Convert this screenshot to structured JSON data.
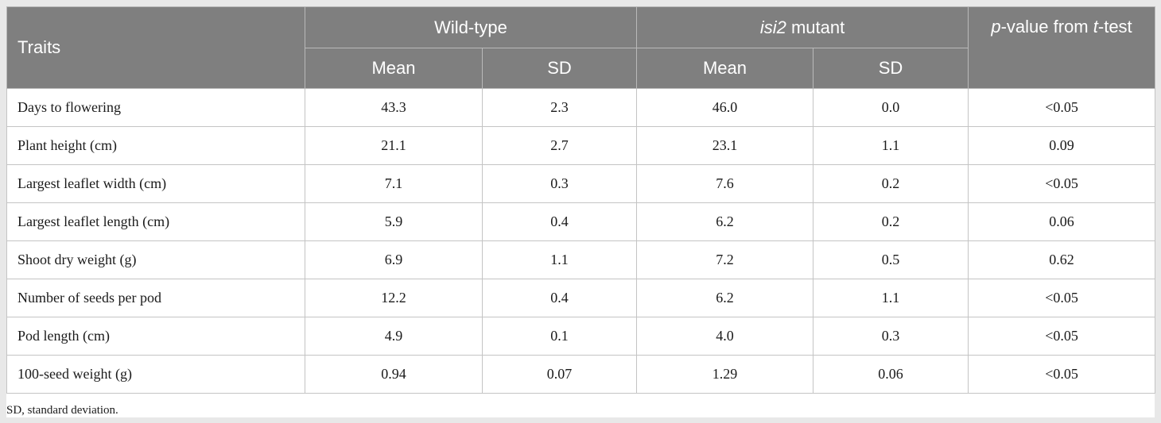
{
  "table": {
    "header": {
      "traits": "Traits",
      "wild_type": "Wild-type",
      "mutant_gene": "isi2",
      "mutant_suffix": " mutant",
      "p_italic": "p",
      "p_middle": "-value from ",
      "t_italic": "t",
      "t_suffix": "-test",
      "mean": "Mean",
      "sd": "SD"
    },
    "rows": [
      {
        "trait": "Days to flowering",
        "wt_mean": "43.3",
        "wt_sd": "2.3",
        "mut_mean": "46.0",
        "mut_sd": "0.0",
        "p": "<0.05"
      },
      {
        "trait": "Plant height (cm)",
        "wt_mean": "21.1",
        "wt_sd": "2.7",
        "mut_mean": "23.1",
        "mut_sd": "1.1",
        "p": "0.09"
      },
      {
        "trait": "Largest leaflet width (cm)",
        "wt_mean": "7.1",
        "wt_sd": "0.3",
        "mut_mean": "7.6",
        "mut_sd": "0.2",
        "p": "<0.05"
      },
      {
        "trait": "Largest leaflet length (cm)",
        "wt_mean": "5.9",
        "wt_sd": "0.4",
        "mut_mean": "6.2",
        "mut_sd": "0.2",
        "p": "0.06"
      },
      {
        "trait": "Shoot dry weight (g)",
        "wt_mean": "6.9",
        "wt_sd": "1.1",
        "mut_mean": "7.2",
        "mut_sd": "0.5",
        "p": "0.62"
      },
      {
        "trait": "Number of seeds per pod",
        "wt_mean": "12.2",
        "wt_sd": "0.4",
        "mut_mean": "6.2",
        "mut_sd": "1.1",
        "p": "<0.05"
      },
      {
        "trait": "Pod length (cm)",
        "wt_mean": "4.9",
        "wt_sd": "0.1",
        "mut_mean": "4.0",
        "mut_sd": "0.3",
        "p": "<0.05"
      },
      {
        "trait": "100-seed weight (g)",
        "wt_mean": "0.94",
        "wt_sd": "0.07",
        "mut_mean": "1.29",
        "mut_sd": "0.06",
        "p": "<0.05"
      }
    ]
  },
  "footnote": "SD, standard deviation.",
  "colors": {
    "header_bg": "#7f7f7f",
    "header_text": "#ffffff",
    "page_bg": "#e8e8e8",
    "grid": "#c4c4c4"
  }
}
